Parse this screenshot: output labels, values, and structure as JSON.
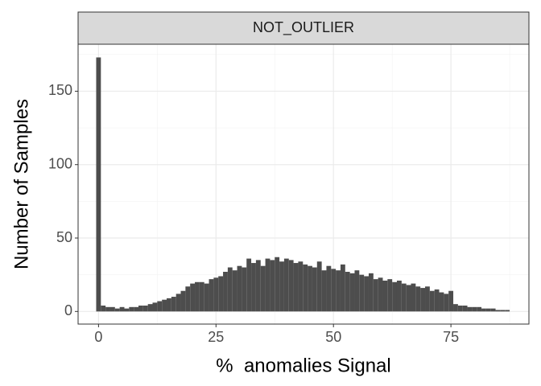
{
  "chart_data": {
    "type": "histogram",
    "facet": "NOT_OUTLIER",
    "x_label": "%  anomalies Signal",
    "y_label": "Number of Samples",
    "bins": [
      -0.5,
      0.5,
      1.5,
      2.5,
      3.5,
      4.5,
      5.5,
      6.5,
      7.5,
      8.5,
      9.5,
      10.5,
      11.5,
      12.5,
      13.5,
      14.5,
      15.5,
      16.5,
      17.5,
      18.5,
      19.5,
      20.5,
      21.5,
      22.5,
      23.5,
      24.5,
      25.5,
      26.5,
      27.5,
      28.5,
      29.5,
      30.5,
      31.5,
      32.5,
      33.5,
      34.5,
      35.5,
      36.5,
      37.5,
      38.5,
      39.5,
      40.5,
      41.5,
      42.5,
      43.5,
      44.5,
      45.5,
      46.5,
      47.5,
      48.5,
      49.5,
      50.5,
      51.5,
      52.5,
      53.5,
      54.5,
      55.5,
      56.5,
      57.5,
      58.5,
      59.5,
      60.5,
      61.5,
      62.5,
      63.5,
      64.5,
      65.5,
      66.5,
      67.5,
      68.5,
      69.5,
      70.5,
      71.5,
      72.5,
      73.5,
      74.5,
      75.5,
      76.5,
      77.5,
      78.5,
      79.5,
      80.5,
      81.5,
      82.5,
      83.5,
      84.5,
      85.5,
      86.5,
      87.5
    ],
    "counts": [
      173,
      4,
      3,
      3,
      2,
      3,
      2,
      3,
      3,
      4,
      4,
      5,
      6,
      7,
      8,
      9,
      10,
      12,
      14,
      17,
      19,
      20,
      20,
      19,
      22,
      23,
      24,
      27,
      30,
      28,
      31,
      30,
      36,
      33,
      35,
      31,
      36,
      35,
      37,
      34,
      36,
      35,
      33,
      34,
      32,
      31,
      30,
      34,
      28,
      31,
      29,
      28,
      32,
      27,
      26,
      28,
      25,
      24,
      26,
      22,
      23,
      21,
      22,
      20,
      21,
      19,
      18,
      19,
      17,
      16,
      17,
      14,
      15,
      13,
      12,
      14,
      5,
      4,
      4,
      3,
      3,
      3,
      2,
      2,
      2,
      1,
      1,
      1
    ],
    "color": "#4d4d4d",
    "xlim": [
      -4.35,
      91.6
    ],
    "ylim": [
      -8.6,
      182
    ],
    "xticks": [
      0,
      25,
      50,
      75
    ],
    "yticks": [
      0,
      50,
      100,
      150
    ],
    "x_minor_ticks": [
      12.5,
      37.5,
      62.5,
      87.5
    ],
    "y_minor_ticks": [
      25,
      75,
      125,
      175
    ],
    "grid": true
  }
}
